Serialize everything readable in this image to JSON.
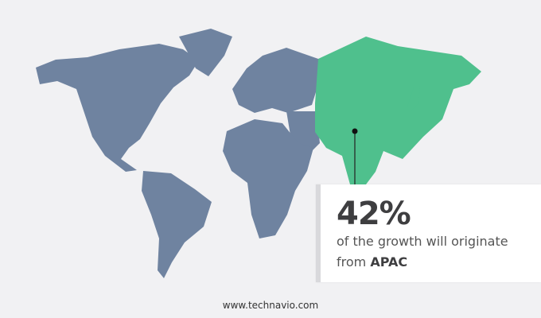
{
  "colors": {
    "other_regions": "#6f83a0",
    "highlighted_region": "#4fc08d",
    "background": "#f1f1f3"
  },
  "highlighted_region": "APAC",
  "callout": {
    "value": "42%",
    "text": "of the growth will originate",
    "prefix": "from",
    "region": "APAC"
  },
  "footer": "www.technavio.com"
}
